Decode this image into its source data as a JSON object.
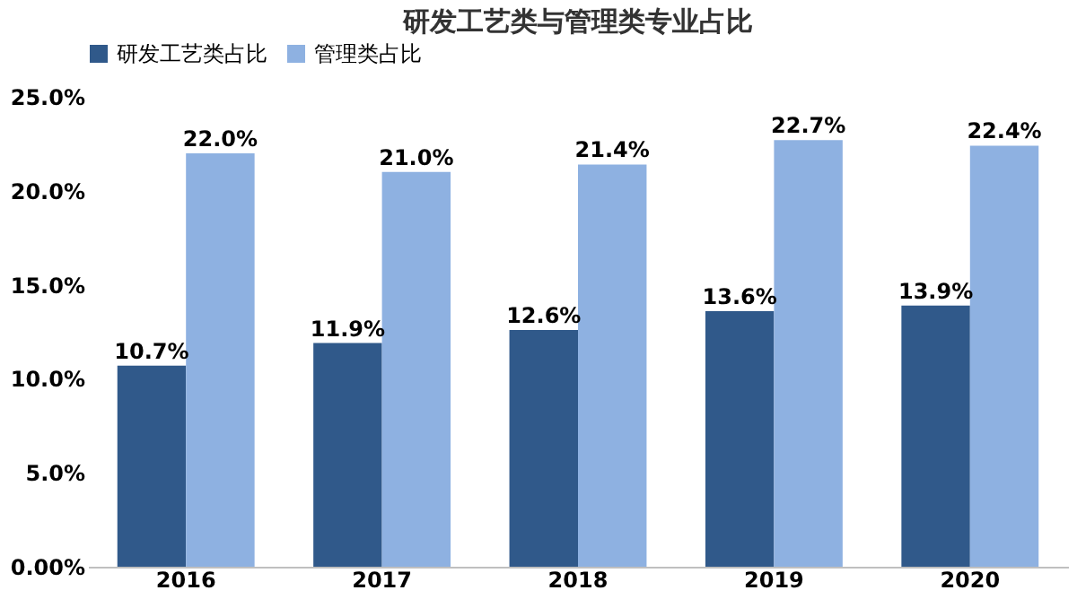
{
  "chart_data": {
    "type": "bar",
    "title": "研发工艺类与管理类专业占比",
    "categories": [
      "2016",
      "2017",
      "2018",
      "2019",
      "2020"
    ],
    "series": [
      {
        "name": "研发工艺类占比",
        "color": "#30598a",
        "values": [
          10.7,
          11.9,
          12.6,
          13.6,
          13.9
        ],
        "value_labels": [
          "10.7%",
          "11.9%",
          "12.6%",
          "13.6%",
          "13.9%"
        ]
      },
      {
        "name": "管理类占比",
        "color": "#8eb1e1",
        "values": [
          22.0,
          21.0,
          21.4,
          22.7,
          22.4
        ],
        "value_labels": [
          "22.0%",
          "21.0%",
          "21.4%",
          "22.7%",
          "22.4%"
        ]
      }
    ],
    "ylim": [
      0,
      25
    ],
    "yticks": [
      {
        "value": 0,
        "label": "0.00%"
      },
      {
        "value": 5,
        "label": "5.0%"
      },
      {
        "value": 10,
        "label": "10.0%"
      },
      {
        "value": 15,
        "label": "15.0%"
      },
      {
        "value": 20,
        "label": "20.0%"
      },
      {
        "value": 25,
        "label": "25.0%"
      }
    ],
    "legend": "top",
    "grid": false
  }
}
